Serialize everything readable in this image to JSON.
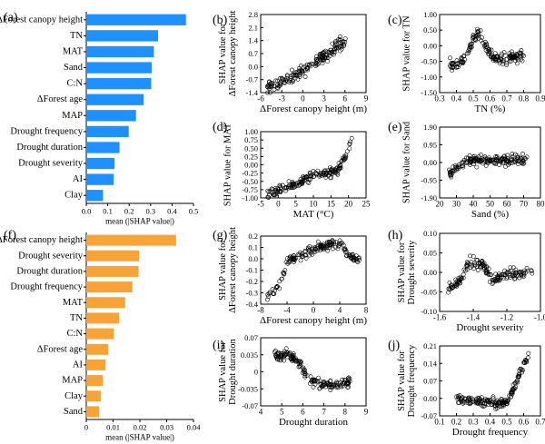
{
  "chart_data": [
    {
      "id": "a",
      "panel_label": "(a)",
      "type": "bar",
      "orientation": "horizontal",
      "color": "#1e90ff",
      "categories": [
        "ΔForest canopy height",
        "TN",
        "MAT",
        "Sand",
        "C:N",
        "ΔForest age",
        "MAP",
        "Drought frequency",
        "Drought duration",
        "Drought severity",
        "AI",
        "Clay"
      ],
      "values": [
        0.465,
        0.335,
        0.315,
        0.305,
        0.303,
        0.268,
        0.232,
        0.198,
        0.155,
        0.132,
        0.128,
        0.078
      ],
      "xlim": [
        0,
        0.5
      ],
      "xticks": [
        "0.0",
        "0.1",
        "0.2",
        "0.3",
        "0.4",
        "0.5"
      ],
      "xlabel": "mean (|SHAP value|)"
    },
    {
      "id": "f",
      "panel_label": "(f)",
      "type": "bar",
      "orientation": "horizontal",
      "color": "#f7a337",
      "categories": [
        "ΔForest canopy height",
        "Drought severity",
        "Drought duration",
        "Drought frequency",
        "MAT",
        "TN",
        "C:N",
        "ΔForest age",
        "AI",
        "MAP",
        "Clay",
        "Sand"
      ],
      "values": [
        0.0335,
        0.0197,
        0.0195,
        0.0172,
        0.0145,
        0.0123,
        0.0103,
        0.0082,
        0.0072,
        0.0062,
        0.0054,
        0.0048
      ],
      "xlim": [
        0,
        0.04
      ],
      "xticks": [
        "0",
        "0.01",
        "0.02",
        "0.03",
        "0.04"
      ],
      "xlabel": "mean (|SHAP value|)"
    },
    {
      "id": "b",
      "panel_label": "(b)",
      "type": "scatter",
      "xlabel": "ΔForest canopy height (m)",
      "ylabel": [
        "SHAP value for",
        "ΔForest canopy height"
      ],
      "xlim": [
        -7,
        9
      ],
      "ylim": [
        -1.4,
        2.8
      ],
      "xticks": [
        "-6",
        "-3",
        "0",
        "3",
        "6",
        "9"
      ],
      "yticks": [
        "-1.4",
        "-0.7",
        "0.0",
        "0.7",
        "1.4",
        "2.1",
        "2.8"
      ],
      "trend": [
        [
          -6,
          -1.1
        ],
        [
          -3,
          -0.7
        ],
        [
          0,
          -0.1
        ],
        [
          3,
          0.6
        ],
        [
          5,
          1.2
        ],
        [
          6,
          1.3
        ]
      ]
    },
    {
      "id": "c",
      "panel_label": "(c)",
      "type": "scatter",
      "xlabel": "TN (%)",
      "ylabel": [
        "SHAP value for TN"
      ],
      "xlim": [
        0.3,
        0.9
      ],
      "ylim": [
        -1.5,
        1.0
      ],
      "xticks": [
        "0.3",
        "0.4",
        "0.5",
        "0.6",
        "0.7",
        "0.8",
        "0.9"
      ],
      "yticks": [
        "-1.50",
        "-1.00",
        "-0.50",
        "0.00",
        "0.50",
        "1.00"
      ],
      "trend": [
        [
          0.36,
          -0.6
        ],
        [
          0.42,
          -0.6
        ],
        [
          0.47,
          -0.2
        ],
        [
          0.52,
          0.45
        ],
        [
          0.56,
          0.1
        ],
        [
          0.62,
          -0.4
        ],
        [
          0.7,
          -0.4
        ],
        [
          0.8,
          -0.35
        ]
      ]
    },
    {
      "id": "d",
      "panel_label": "(d)",
      "type": "scatter",
      "xlabel": "MAT (°C)",
      "ylabel": [
        "SHAP value for MAT"
      ],
      "xlim": [
        -5,
        25
      ],
      "ylim": [
        -1.0,
        1.0
      ],
      "xticks": [
        "-5",
        "0",
        "5",
        "10",
        "15",
        "20",
        "25"
      ],
      "yticks": [
        "-1.00",
        "-0.75",
        "-0.50",
        "-0.25",
        "0.00",
        "0.25",
        "0.50",
        "0.75",
        "1.00"
      ],
      "trend": [
        [
          -3,
          -0.9
        ],
        [
          2,
          -0.68
        ],
        [
          6,
          -0.55
        ],
        [
          10,
          -0.3
        ],
        [
          14,
          -0.25
        ],
        [
          17,
          -0.15
        ],
        [
          19,
          0.2
        ],
        [
          21,
          0.8
        ]
      ]
    },
    {
      "id": "e",
      "panel_label": "(e)",
      "type": "scatter",
      "xlabel": "Sand (%)",
      "ylabel": [
        "SHAP value for Sand"
      ],
      "xlim": [
        20,
        80
      ],
      "ylim": [
        -1.9,
        1.9
      ],
      "xticks": [
        "20",
        "30",
        "40",
        "50",
        "60",
        "70",
        "80"
      ],
      "yticks": [
        "-1.90",
        "-0.95",
        "0.00",
        "0.95",
        "1.90"
      ],
      "trend": [
        [
          25,
          -0.6
        ],
        [
          30,
          -0.25
        ],
        [
          35,
          0.05
        ],
        [
          40,
          0.1
        ],
        [
          50,
          0.12
        ],
        [
          60,
          0.15
        ],
        [
          72,
          0.12
        ]
      ]
    },
    {
      "id": "g",
      "panel_label": "(g)",
      "type": "scatter",
      "xlabel": "ΔForest canopy height (m)",
      "ylabel": [
        "SHAP value for",
        "ΔForest canopy height"
      ],
      "xlim": [
        -8,
        8
      ],
      "ylim": [
        -0.5,
        0.2
      ],
      "xticks": [
        "-8",
        "-4",
        "0",
        "4",
        "8"
      ],
      "yticks": [
        "-0.4",
        "-0.3",
        "-0.2",
        "-0.1",
        "0.0",
        "0.1",
        "0.2"
      ],
      "trend": [
        [
          -7,
          -0.42
        ],
        [
          -5,
          -0.3
        ],
        [
          -4,
          -0.05
        ],
        [
          -2,
          0.0
        ],
        [
          0,
          0.06
        ],
        [
          2,
          0.1
        ],
        [
          4,
          0.12
        ],
        [
          6,
          -0.02
        ],
        [
          7,
          -0.05
        ]
      ]
    },
    {
      "id": "h",
      "panel_label": "(h)",
      "type": "scatter",
      "xlabel": "Drought severity",
      "ylabel": [
        "SHAP value for",
        "Drought severity"
      ],
      "xlim": [
        -1.6,
        -0.95
      ],
      "ylim": [
        -0.1,
        0.1
      ],
      "xticks": [
        "-1.6",
        "-1.4",
        "-1.2",
        "-1.0"
      ],
      "yticks": [
        "-0.10",
        "-0.05",
        "0.00",
        "0.05",
        "0.10"
      ],
      "trend": [
        [
          -1.55,
          -0.05
        ],
        [
          -1.47,
          -0.02
        ],
        [
          -1.42,
          0.02
        ],
        [
          -1.33,
          0.02
        ],
        [
          -1.25,
          -0.02
        ],
        [
          -1.15,
          0.0
        ],
        [
          -1.0,
          -0.005
        ]
      ]
    },
    {
      "id": "i",
      "panel_label": "(i)",
      "type": "scatter",
      "xlabel": "Drought duration",
      "ylabel": [
        "SHAP value for",
        "Drought duration"
      ],
      "xlim": [
        4,
        9
      ],
      "ylim": [
        -0.07,
        0.07
      ],
      "xticks": [
        "4",
        "5",
        "6",
        "7",
        "8",
        "9"
      ],
      "yticks": [
        "-0.07",
        "-0.035",
        "0",
        "0.035",
        "0.07"
      ],
      "trend": [
        [
          4.6,
          0.03
        ],
        [
          5.3,
          0.035
        ],
        [
          5.8,
          0.02
        ],
        [
          6.3,
          -0.015
        ],
        [
          6.8,
          -0.025
        ],
        [
          7.5,
          -0.03
        ],
        [
          8.3,
          -0.02
        ]
      ]
    },
    {
      "id": "j",
      "panel_label": "(j)",
      "type": "scatter",
      "xlabel": "Drought frequency",
      "ylabel": [
        "SHAP value for",
        "Drought frequency"
      ],
      "xlim": [
        0.1,
        0.7
      ],
      "ylim": [
        -0.07,
        0.21
      ],
      "xticks": [
        "0.1",
        "0.2",
        "0.3",
        "0.4",
        "0.5",
        "0.6",
        "0.7"
      ],
      "yticks": [
        "-0.07",
        "0.00",
        "0.07",
        "0.14",
        "0.21"
      ],
      "trend": [
        [
          0.2,
          0.0
        ],
        [
          0.3,
          -0.01
        ],
        [
          0.4,
          -0.015
        ],
        [
          0.5,
          -0.015
        ],
        [
          0.55,
          0.05
        ],
        [
          0.6,
          0.14
        ],
        [
          0.63,
          0.17
        ]
      ]
    }
  ]
}
